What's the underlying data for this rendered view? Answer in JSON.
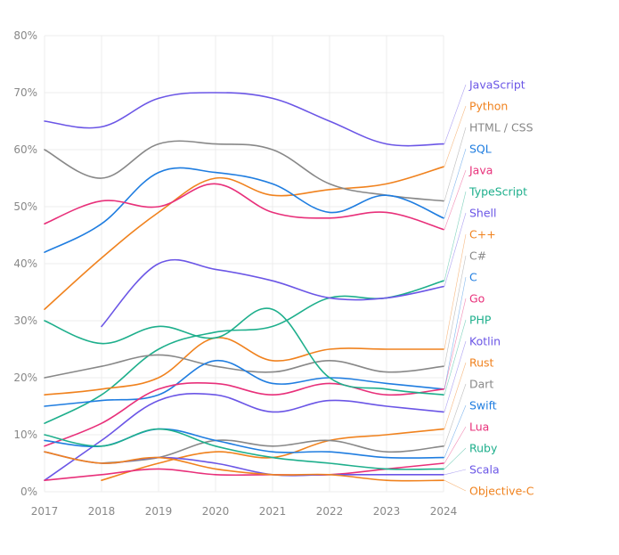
{
  "chart_data": {
    "type": "line",
    "title": "",
    "xlabel": "",
    "ylabel": "",
    "x": [
      2017,
      2018,
      2019,
      2020,
      2021,
      2022,
      2023,
      2024
    ],
    "x_tick_labels": [
      "2017",
      "2018",
      "2019",
      "2020",
      "2021",
      "2022",
      "2023",
      "2024"
    ],
    "ylim": [
      0,
      80
    ],
    "y_ticks": [
      0,
      10,
      20,
      30,
      40,
      50,
      60,
      70,
      80
    ],
    "y_tick_labels": [
      "0%",
      "10%",
      "20%",
      "30%",
      "40%",
      "50%",
      "60%",
      "70%",
      "80%"
    ],
    "grid": true,
    "legend_position": "right",
    "series": [
      {
        "name": "JavaScript",
        "color": "#6b56e6",
        "values": [
          65,
          64,
          69,
          70,
          69,
          65,
          61,
          61
        ]
      },
      {
        "name": "Python",
        "color": "#f0821e",
        "values": [
          32,
          41,
          49,
          55,
          52,
          53,
          54,
          57
        ]
      },
      {
        "name": "HTML / CSS",
        "color": "#888888",
        "values": [
          60,
          55,
          61,
          61,
          60,
          54,
          52,
          51
        ]
      },
      {
        "name": "SQL",
        "color": "#1f7de0",
        "values": [
          42,
          47,
          56,
          56,
          54,
          49,
          52,
          48
        ]
      },
      {
        "name": "Java",
        "color": "#e8307a",
        "values": [
          47,
          51,
          50,
          54,
          49,
          48,
          49,
          46
        ]
      },
      {
        "name": "TypeScript",
        "color": "#1eaf8c",
        "values": [
          12,
          17,
          25,
          28,
          29,
          34,
          34,
          37
        ]
      },
      {
        "name": "Shell",
        "color": "#6b56e6",
        "values": [
          null,
          29,
          40,
          39,
          37,
          34,
          34,
          36
        ]
      },
      {
        "name": "C++",
        "color": "#f0821e",
        "values": [
          17,
          18,
          20,
          27,
          23,
          25,
          25,
          25
        ]
      },
      {
        "name": "C#",
        "color": "#888888",
        "values": [
          20,
          22,
          24,
          22,
          21,
          23,
          21,
          22
        ]
      },
      {
        "name": "C",
        "color": "#1f7de0",
        "values": [
          15,
          16,
          17,
          23,
          19,
          20,
          19,
          18
        ]
      },
      {
        "name": "Go",
        "color": "#e8307a",
        "values": [
          8,
          12,
          18,
          19,
          17,
          19,
          17,
          18
        ]
      },
      {
        "name": "PHP",
        "color": "#1eaf8c",
        "values": [
          30,
          26,
          29,
          27,
          32,
          20,
          18,
          17
        ]
      },
      {
        "name": "Kotlin",
        "color": "#6b56e6",
        "values": [
          2,
          9,
          16,
          17,
          14,
          16,
          15,
          14
        ]
      },
      {
        "name": "Rust",
        "color": "#f0821e",
        "values": [
          null,
          2,
          5,
          7,
          6,
          9,
          10,
          11
        ]
      },
      {
        "name": "Dart",
        "color": "#888888",
        "values": [
          null,
          5,
          6,
          9,
          8,
          9,
          7,
          8
        ]
      },
      {
        "name": "Swift",
        "color": "#1f7de0",
        "values": [
          9,
          8,
          11,
          9,
          7,
          7,
          6,
          6
        ]
      },
      {
        "name": "Lua",
        "color": "#e8307a",
        "values": [
          2,
          3,
          4,
          3,
          3,
          3,
          4,
          5
        ]
      },
      {
        "name": "Ruby",
        "color": "#1eaf8c",
        "values": [
          10,
          8,
          11,
          8,
          6,
          5,
          4,
          4
        ]
      },
      {
        "name": "Scala",
        "color": "#6b56e6",
        "values": [
          7,
          5,
          6,
          5,
          3,
          3,
          3,
          3
        ]
      },
      {
        "name": "Objective-C",
        "color": "#f0821e",
        "values": [
          7,
          5,
          6,
          4,
          3,
          3,
          2,
          2
        ]
      }
    ]
  }
}
